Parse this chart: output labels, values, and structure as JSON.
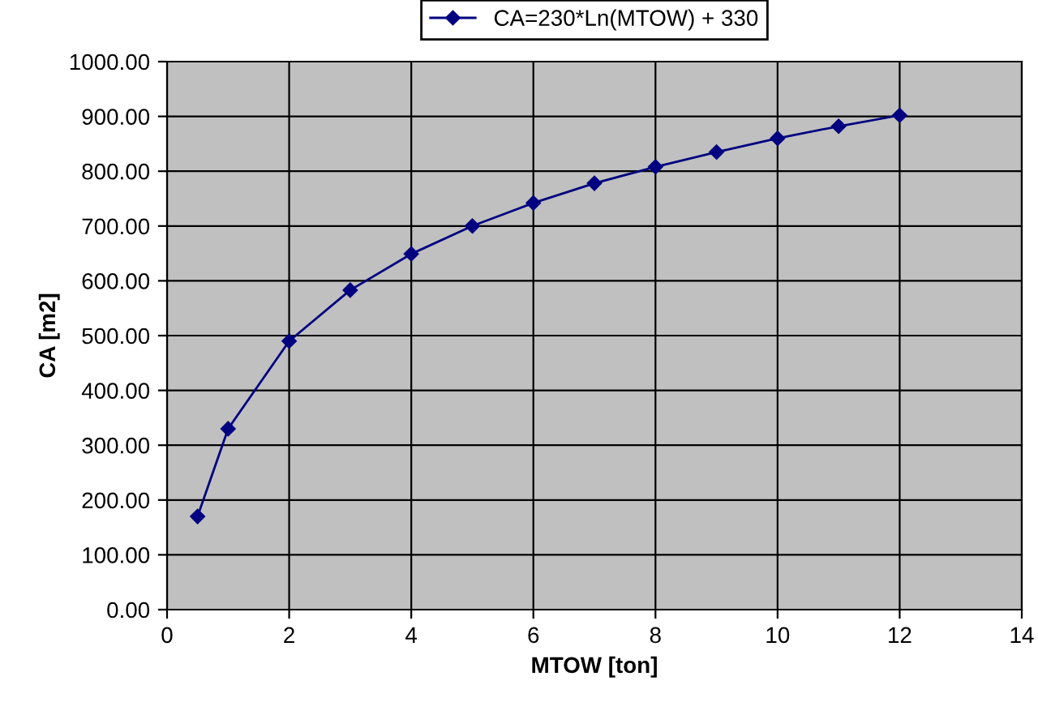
{
  "chart_data": {
    "type": "line",
    "xlabel": "MTOW [ton]",
    "ylabel": "CA [m2]",
    "series": [
      {
        "name": "CA=230*Ln(MTOW) + 330",
        "color": "#000080",
        "x": [
          0.5,
          1,
          2,
          3,
          4,
          5,
          6,
          7,
          8,
          9,
          10,
          11,
          12
        ],
        "values": [
          170,
          330,
          490,
          583,
          649,
          700,
          742,
          778,
          808,
          835,
          860,
          882,
          902
        ]
      }
    ],
    "xlim": [
      0,
      14
    ],
    "xticks": [
      0,
      2,
      4,
      6,
      8,
      10,
      12,
      14
    ],
    "ylim": [
      0,
      1000
    ],
    "yticks": [
      {
        "value": 0,
        "label": "0.00"
      },
      {
        "value": 100,
        "label": "100.00"
      },
      {
        "value": 200,
        "label": "200.00"
      },
      {
        "value": 300,
        "label": "300.00"
      },
      {
        "value": 400,
        "label": "400.00"
      },
      {
        "value": 500,
        "label": "500.00"
      },
      {
        "value": 600,
        "label": "600.00"
      },
      {
        "value": 700,
        "label": "700.00"
      },
      {
        "value": 800,
        "label": "800.00"
      },
      {
        "value": 900,
        "label": "900.00"
      },
      {
        "value": 1000,
        "label": "1000.00"
      }
    ],
    "grid": true,
    "legend": "top",
    "marker": "diamond",
    "line_style": "solid"
  }
}
